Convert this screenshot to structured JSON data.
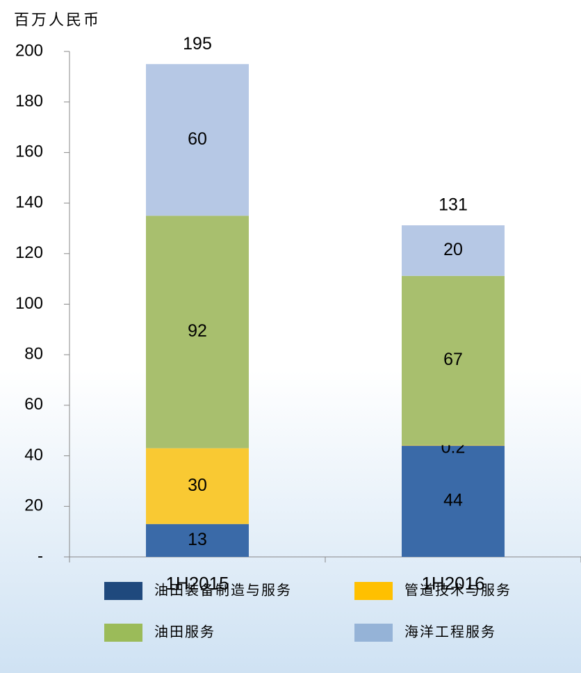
{
  "chart_data": {
    "type": "stacked_bar",
    "y_label": "百万人民币",
    "categories": [
      "1H2015",
      "1H2016"
    ],
    "series": [
      {
        "name": "油田装备制造与服务",
        "color": "#3a6aa8",
        "values": [
          13,
          44
        ]
      },
      {
        "name": "管道技术与服务",
        "color": "#f9c933",
        "values": [
          30,
          0.2
        ]
      },
      {
        "name": "油田服务",
        "color": "#a8bf6e",
        "values": [
          92,
          67
        ]
      },
      {
        "name": "海洋工程服务",
        "color": "#b6c8e5",
        "values": [
          60,
          20
        ]
      }
    ],
    "totals": [
      195,
      131
    ],
    "ylim": [
      0,
      200
    ],
    "yticks": [
      {
        "value": 0,
        "label": "-"
      },
      20,
      40,
      60,
      80,
      100,
      120,
      140,
      160,
      180,
      200
    ]
  }
}
